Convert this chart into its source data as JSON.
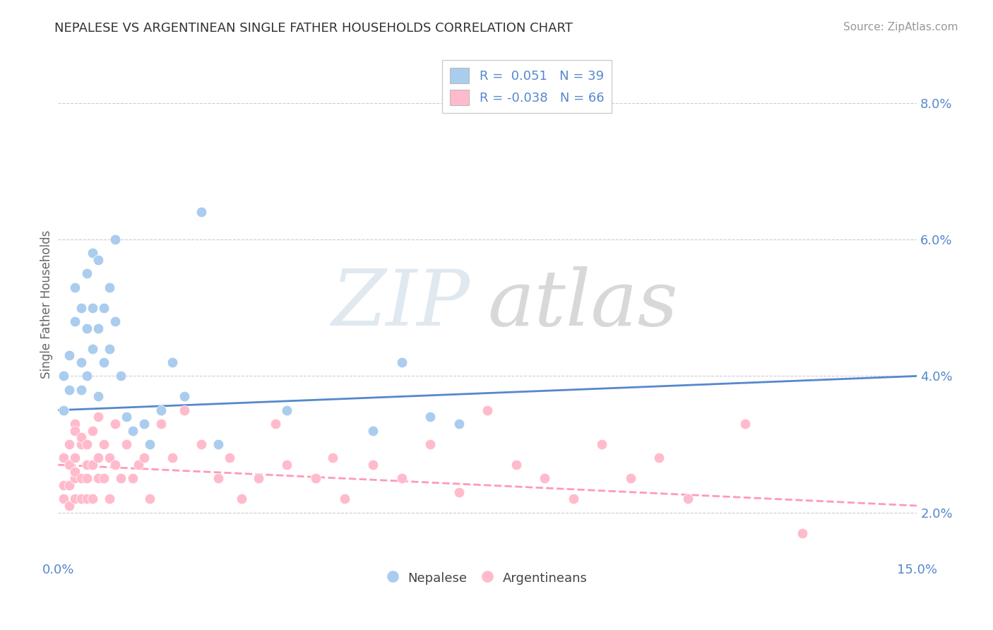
{
  "title": "NEPALESE VS ARGENTINEAN SINGLE FATHER HOUSEHOLDS CORRELATION CHART",
  "source": "Source: ZipAtlas.com",
  "xlabel": "",
  "ylabel": "Single Father Households",
  "xlim": [
    0.0,
    0.15
  ],
  "ylim": [
    0.013,
    0.088
  ],
  "yticks": [
    0.02,
    0.04,
    0.06,
    0.08
  ],
  "ytick_labels": [
    "2.0%",
    "4.0%",
    "6.0%",
    "8.0%"
  ],
  "xticks": [
    0.0,
    0.15
  ],
  "xtick_labels": [
    "0.0%",
    "15.0%"
  ],
  "legend_r1": "R =  0.051",
  "legend_n1": "N = 39",
  "legend_r2": "R = -0.038",
  "legend_n2": "N = 66",
  "nepalese_color": "#aaccee",
  "argentinean_color": "#ffbbcc",
  "trend_blue": "#5588cc",
  "trend_pink": "#ff99bb",
  "nepalese_x": [
    0.001,
    0.001,
    0.002,
    0.002,
    0.003,
    0.003,
    0.004,
    0.004,
    0.004,
    0.005,
    0.005,
    0.005,
    0.006,
    0.006,
    0.006,
    0.007,
    0.007,
    0.007,
    0.008,
    0.008,
    0.009,
    0.009,
    0.01,
    0.01,
    0.011,
    0.012,
    0.013,
    0.015,
    0.016,
    0.018,
    0.02,
    0.022,
    0.025,
    0.028,
    0.04,
    0.055,
    0.06,
    0.065,
    0.07
  ],
  "nepalese_y": [
    0.04,
    0.035,
    0.038,
    0.043,
    0.048,
    0.053,
    0.05,
    0.042,
    0.038,
    0.055,
    0.047,
    0.04,
    0.058,
    0.05,
    0.044,
    0.057,
    0.047,
    0.037,
    0.05,
    0.042,
    0.053,
    0.044,
    0.06,
    0.048,
    0.04,
    0.034,
    0.032,
    0.033,
    0.03,
    0.035,
    0.042,
    0.037,
    0.064,
    0.03,
    0.035,
    0.032,
    0.042,
    0.034,
    0.033
  ],
  "argentinean_x": [
    0.001,
    0.001,
    0.001,
    0.002,
    0.002,
    0.002,
    0.002,
    0.003,
    0.003,
    0.003,
    0.003,
    0.003,
    0.003,
    0.004,
    0.004,
    0.004,
    0.004,
    0.005,
    0.005,
    0.005,
    0.005,
    0.006,
    0.006,
    0.006,
    0.007,
    0.007,
    0.007,
    0.008,
    0.008,
    0.009,
    0.009,
    0.01,
    0.01,
    0.011,
    0.012,
    0.013,
    0.014,
    0.015,
    0.016,
    0.018,
    0.02,
    0.022,
    0.025,
    0.028,
    0.03,
    0.032,
    0.035,
    0.038,
    0.04,
    0.045,
    0.048,
    0.05,
    0.055,
    0.06,
    0.065,
    0.07,
    0.075,
    0.08,
    0.085,
    0.09,
    0.095,
    0.1,
    0.105,
    0.11,
    0.12,
    0.13
  ],
  "argentinean_y": [
    0.028,
    0.024,
    0.022,
    0.03,
    0.027,
    0.024,
    0.021,
    0.033,
    0.028,
    0.025,
    0.022,
    0.032,
    0.026,
    0.03,
    0.025,
    0.022,
    0.031,
    0.025,
    0.03,
    0.022,
    0.027,
    0.032,
    0.027,
    0.022,
    0.034,
    0.025,
    0.028,
    0.03,
    0.025,
    0.028,
    0.022,
    0.033,
    0.027,
    0.025,
    0.03,
    0.025,
    0.027,
    0.028,
    0.022,
    0.033,
    0.028,
    0.035,
    0.03,
    0.025,
    0.028,
    0.022,
    0.025,
    0.033,
    0.027,
    0.025,
    0.028,
    0.022,
    0.027,
    0.025,
    0.03,
    0.023,
    0.035,
    0.027,
    0.025,
    0.022,
    0.03,
    0.025,
    0.028,
    0.022,
    0.033,
    0.017
  ],
  "nep_trend_start": 0.035,
  "nep_trend_end": 0.04,
  "arg_trend_start": 0.027,
  "arg_trend_end": 0.021,
  "background_color": "#ffffff",
  "grid_color": "#cccccc",
  "tick_color": "#5588cc",
  "ylabel_color": "#666666",
  "title_color": "#333333"
}
